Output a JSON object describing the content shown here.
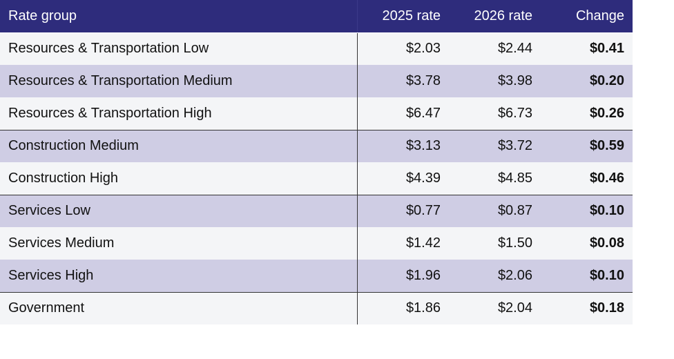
{
  "headers": {
    "group": "Rate group",
    "rate_2025": "2025 rate",
    "rate_2026": "2026 rate",
    "change": "Change"
  },
  "colors": {
    "header_bg": "#2e2c7c",
    "row_light": "#f4f5f7",
    "row_dark": "#cfcde4"
  },
  "rows": [
    {
      "group": "Resources & Transportation Low",
      "rate_2025": "$2.03",
      "rate_2026": "$2.44",
      "change": "$0.41"
    },
    {
      "group": "Resources & Transportation Medium",
      "rate_2025": "$3.78",
      "rate_2026": "$3.98",
      "change": "$0.20"
    },
    {
      "group": "Resources & Transportation High",
      "rate_2025": "$6.47",
      "rate_2026": "$6.73",
      "change": "$0.26"
    },
    {
      "group": "Construction Medium",
      "rate_2025": "$3.13",
      "rate_2026": "$3.72",
      "change": "$0.59"
    },
    {
      "group": "Construction High",
      "rate_2025": "$4.39",
      "rate_2026": "$4.85",
      "change": "$0.46"
    },
    {
      "group": "Services Low",
      "rate_2025": "$0.77",
      "rate_2026": "$0.87",
      "change": "$0.10"
    },
    {
      "group": "Services Medium",
      "rate_2025": "$1.42",
      "rate_2026": "$1.50",
      "change": "$0.08"
    },
    {
      "group": "Services High",
      "rate_2025": "$1.96",
      "rate_2026": "$2.06",
      "change": "$0.10"
    },
    {
      "group": "Government",
      "rate_2025": "$1.86",
      "rate_2026": "$2.04",
      "change": "$0.18"
    }
  ]
}
